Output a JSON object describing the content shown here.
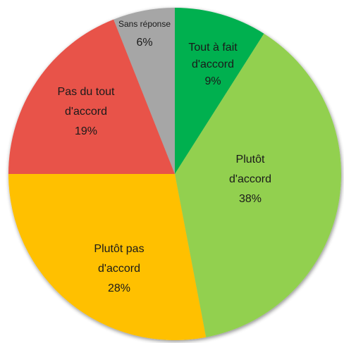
{
  "chart_data": {
    "type": "pie",
    "start_angle_deg": 0,
    "direction": "clockwise",
    "slices": [
      {
        "label_lines": [
          "Tout à fait",
          "d'accord"
        ],
        "value_text": "9%",
        "value": 9,
        "color": "#00b050"
      },
      {
        "label_lines": [
          "Plutôt",
          "d'accord"
        ],
        "value_text": "38%",
        "value": 38,
        "color": "#92d050"
      },
      {
        "label_lines": [
          "Plutôt pas",
          "d'accord"
        ],
        "value_text": "28%",
        "value": 28,
        "color": "#ffc000"
      },
      {
        "label_lines": [
          "Pas du tout",
          "d'accord"
        ],
        "value_text": "19%",
        "value": 19,
        "color": "#e8524a"
      },
      {
        "label_lines": [
          "Sans réponse"
        ],
        "value_text": "6%",
        "value": 6,
        "color": "#a6a6a6"
      }
    ]
  }
}
